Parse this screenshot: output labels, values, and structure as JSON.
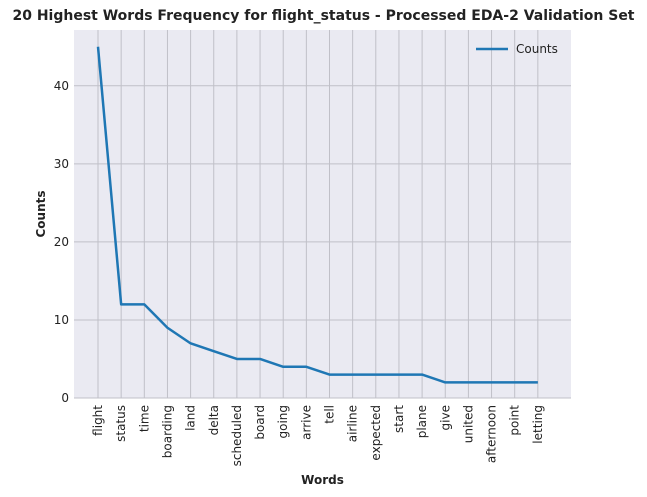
{
  "chart_data": {
    "type": "line",
    "title": "20 Highest Words Frequency for flight_status - Processed EDA-2 Validation Set",
    "xlabel": "Words",
    "ylabel": "Counts",
    "categories": [
      "flight",
      "status",
      "time",
      "boarding",
      "land",
      "delta",
      "scheduled",
      "board",
      "going",
      "arrive",
      "tell",
      "airline",
      "expected",
      "start",
      "plane",
      "give",
      "united",
      "afternoon",
      "point",
      "letting"
    ],
    "series": [
      {
        "name": "Counts",
        "color": "#1f77b4",
        "values": [
          45,
          12,
          12,
          9,
          7,
          6,
          5,
          5,
          4,
          4,
          3,
          3,
          3,
          3,
          3,
          2,
          2,
          2,
          2,
          2
        ]
      }
    ],
    "ylim": [
      0,
      47.15
    ],
    "yticks": [
      0,
      10,
      20,
      30,
      40
    ],
    "grid": true,
    "legend": "top-right"
  }
}
